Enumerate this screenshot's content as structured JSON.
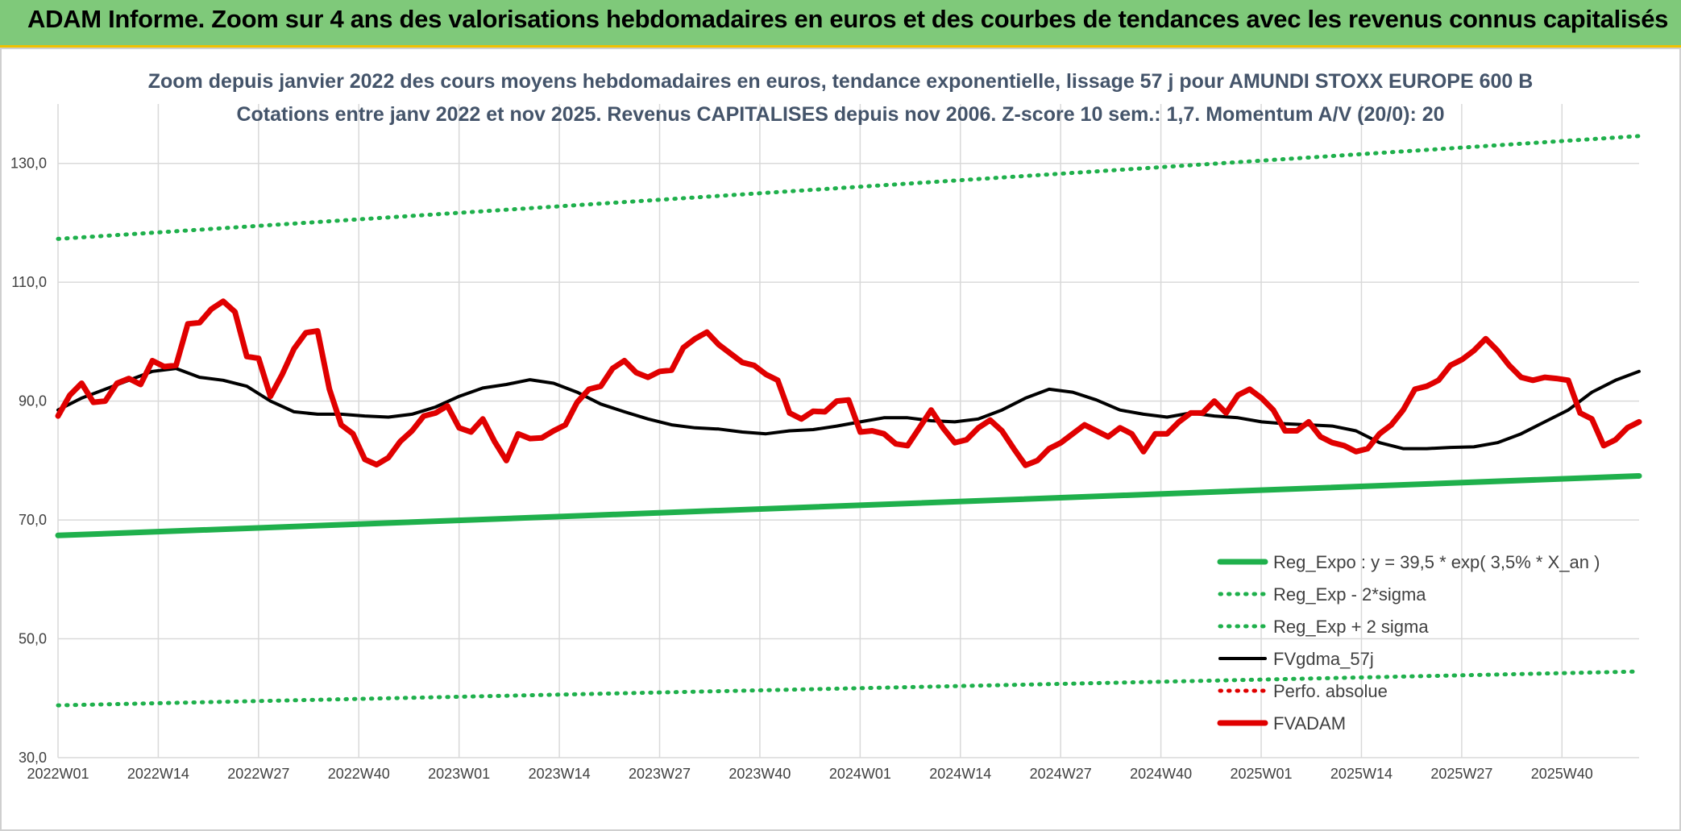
{
  "banner": {
    "title": "ADAM Informe. Zoom sur 4 ans des valorisations hebdomadaires en euros et des courbes de tendances avec les revenus connus capitalisés"
  },
  "colors": {
    "banner_bg": "#7fc97a",
    "banner_border": "#f0c000",
    "reg_expo": "#1fb04c",
    "band": "#1fb04c",
    "gdma": "#000000",
    "perfo": "#e00000",
    "fvadam": "#e00000",
    "grid": "#d9d9d9"
  },
  "chart_data": {
    "type": "line",
    "title_lines": [
      "Zoom depuis janvier 2022 des cours moyens hebdomadaires en euros, tendance exponentielle, lissage 57 j pour AMUNDI STOXX EUROPE 600 B",
      "Cotations entre janv 2022 et nov 2025. Revenus CAPITALISES depuis nov 2006. Z-score 10 sem.: 1,7. Momentum A/V (20/0): 20"
    ],
    "ylim": [
      30,
      140
    ],
    "y_ticks": [
      "30,0",
      "50,0",
      "70,0",
      "90,0",
      "110,0",
      "130,0"
    ],
    "y_tick_values": [
      30,
      50,
      70,
      90,
      110,
      130
    ],
    "x_tick_labels": [
      "2022W01",
      "2022W14",
      "2022W27",
      "2022W40",
      "2023W01",
      "2023W14",
      "2023W27",
      "2023W40",
      "2024W01",
      "2024W14",
      "2024W27",
      "2024W40",
      "2025W01",
      "2025W14",
      "2025W27",
      "2025W40"
    ],
    "weeks_count": 206,
    "grid": true,
    "legend_position": "bottom-right",
    "series": [
      {
        "name": "Reg_Expo : y = 39,5 * exp( 3,5% *  X_an )",
        "style": "solid-thick",
        "color": "#1fb04c",
        "points": [
          [
            0,
            67.4
          ],
          [
            205,
            77.4
          ]
        ]
      },
      {
        "name": "Reg_Exp - 2*sigma",
        "style": "dotted",
        "color": "#1fb04c",
        "points": [
          [
            0,
            38.8
          ],
          [
            205,
            44.5
          ]
        ]
      },
      {
        "name": "Reg_Exp + 2 sigma",
        "style": "dotted",
        "color": "#1fb04c",
        "points": [
          [
            0,
            117.3
          ],
          [
            205,
            134.6
          ]
        ]
      },
      {
        "name": "FVgdma_57j",
        "style": "solid",
        "color": "#000000",
        "points": [
          [
            0,
            88.5
          ],
          [
            4,
            90.5
          ],
          [
            8,
            92
          ],
          [
            12,
            93.5
          ],
          [
            16,
            95
          ],
          [
            20,
            95.5
          ],
          [
            24,
            94
          ],
          [
            28,
            93.5
          ],
          [
            32,
            92.5
          ],
          [
            36,
            90
          ],
          [
            40,
            88.2
          ],
          [
            44,
            87.8
          ],
          [
            48,
            87.8
          ],
          [
            52,
            87.5
          ],
          [
            56,
            87.3
          ],
          [
            60,
            87.8
          ],
          [
            64,
            89
          ],
          [
            68,
            90.8
          ],
          [
            72,
            92.2
          ],
          [
            76,
            92.8
          ],
          [
            80,
            93.6
          ],
          [
            84,
            93
          ],
          [
            88,
            91.5
          ],
          [
            92,
            89.5
          ],
          [
            96,
            88.2
          ],
          [
            100,
            87
          ],
          [
            104,
            86
          ],
          [
            108,
            85.5
          ],
          [
            112,
            85.3
          ],
          [
            116,
            84.8
          ],
          [
            120,
            84.5
          ],
          [
            124,
            85
          ],
          [
            128,
            85.2
          ],
          [
            132,
            85.8
          ],
          [
            136,
            86.5
          ],
          [
            140,
            87.2
          ],
          [
            144,
            87.2
          ],
          [
            148,
            86.7
          ],
          [
            152,
            86.5
          ],
          [
            156,
            87
          ],
          [
            160,
            88.5
          ],
          [
            164,
            90.5
          ],
          [
            168,
            92
          ],
          [
            172,
            91.5
          ],
          [
            176,
            90.2
          ],
          [
            180,
            88.5
          ],
          [
            184,
            87.8
          ],
          [
            188,
            87.3
          ],
          [
            192,
            88
          ],
          [
            196,
            87.5
          ],
          [
            200,
            87.2
          ],
          [
            204,
            86.5
          ],
          [
            208,
            86.2
          ],
          [
            212,
            86
          ],
          [
            216,
            85.8
          ],
          [
            220,
            85
          ],
          [
            224,
            83
          ],
          [
            228,
            82
          ],
          [
            232,
            82
          ],
          [
            236,
            82.2
          ],
          [
            240,
            82.3
          ],
          [
            244,
            83
          ],
          [
            248,
            84.5
          ],
          [
            252,
            86.5
          ],
          [
            256,
            88.5
          ],
          [
            260,
            91.5
          ],
          [
            264,
            93.5
          ],
          [
            268,
            95
          ]
        ]
      },
      {
        "name": "Perfo. absolue",
        "style": "dotted",
        "color": "#e00000",
        "points": []
      },
      {
        "name": "FVADAM",
        "style": "solid-thick",
        "color": "#e00000",
        "points": [
          [
            0,
            87.5
          ],
          [
            2,
            91
          ],
          [
            4,
            93
          ],
          [
            6,
            89.8
          ],
          [
            8,
            90
          ],
          [
            10,
            93
          ],
          [
            12,
            93.8
          ],
          [
            14,
            92.8
          ],
          [
            16,
            96.8
          ],
          [
            18,
            95.8
          ],
          [
            20,
            96
          ],
          [
            22,
            103
          ],
          [
            24,
            103.2
          ],
          [
            26,
            105.5
          ],
          [
            28,
            106.8
          ],
          [
            30,
            105
          ],
          [
            32,
            97.5
          ],
          [
            34,
            97.2
          ],
          [
            36,
            90.8
          ],
          [
            38,
            94.5
          ],
          [
            40,
            98.8
          ],
          [
            42,
            101.5
          ],
          [
            44,
            101.8
          ],
          [
            46,
            92
          ],
          [
            48,
            86
          ],
          [
            50,
            84.5
          ],
          [
            52,
            80.2
          ],
          [
            54,
            79.3
          ],
          [
            56,
            80.5
          ],
          [
            58,
            83.2
          ],
          [
            60,
            85
          ],
          [
            62,
            87.5
          ],
          [
            64,
            88
          ],
          [
            66,
            89.2
          ],
          [
            68,
            85.5
          ],
          [
            70,
            84.8
          ],
          [
            72,
            87
          ],
          [
            74,
            83.2
          ],
          [
            76,
            80
          ],
          [
            78,
            84.5
          ],
          [
            80,
            83.7
          ],
          [
            82,
            83.8
          ],
          [
            84,
            85
          ],
          [
            86,
            86
          ],
          [
            88,
            89.8
          ],
          [
            90,
            92
          ],
          [
            92,
            92.5
          ],
          [
            94,
            95.5
          ],
          [
            96,
            96.8
          ],
          [
            98,
            94.8
          ],
          [
            100,
            94
          ],
          [
            102,
            95
          ],
          [
            104,
            95.2
          ],
          [
            106,
            99
          ],
          [
            108,
            100.5
          ],
          [
            110,
            101.6
          ],
          [
            112,
            99.5
          ],
          [
            114,
            98
          ],
          [
            116,
            96.5
          ],
          [
            118,
            96
          ],
          [
            120,
            94.5
          ],
          [
            122,
            93.5
          ],
          [
            124,
            88
          ],
          [
            126,
            87
          ],
          [
            128,
            88.3
          ],
          [
            130,
            88.2
          ],
          [
            132,
            90
          ],
          [
            134,
            90.2
          ],
          [
            136,
            84.8
          ],
          [
            138,
            85
          ],
          [
            140,
            84.5
          ],
          [
            142,
            82.8
          ],
          [
            144,
            82.5
          ],
          [
            146,
            85.5
          ],
          [
            148,
            88.5
          ],
          [
            150,
            85.5
          ],
          [
            152,
            83
          ],
          [
            154,
            83.5
          ],
          [
            156,
            85.5
          ],
          [
            158,
            86.8
          ],
          [
            160,
            85
          ],
          [
            162,
            82
          ],
          [
            164,
            79.2
          ],
          [
            166,
            80
          ],
          [
            168,
            82
          ],
          [
            170,
            83
          ],
          [
            172,
            84.5
          ],
          [
            174,
            86
          ],
          [
            176,
            85
          ],
          [
            178,
            84
          ],
          [
            180,
            85.5
          ],
          [
            182,
            84.5
          ],
          [
            184,
            81.5
          ],
          [
            186,
            84.5
          ],
          [
            188,
            84.5
          ],
          [
            190,
            86.5
          ],
          [
            192,
            88
          ],
          [
            194,
            88
          ],
          [
            196,
            90
          ],
          [
            198,
            88
          ],
          [
            200,
            91
          ],
          [
            202,
            92
          ],
          [
            204,
            90.5
          ],
          [
            206,
            88.5
          ],
          [
            208,
            85
          ],
          [
            210,
            85
          ],
          [
            212,
            86.5
          ],
          [
            214,
            84
          ],
          [
            216,
            83
          ],
          [
            218,
            82.5
          ],
          [
            220,
            81.5
          ],
          [
            222,
            82
          ],
          [
            224,
            84.5
          ],
          [
            226,
            86
          ],
          [
            228,
            88.5
          ],
          [
            230,
            92
          ],
          [
            232,
            92.5
          ],
          [
            234,
            93.5
          ],
          [
            236,
            96
          ],
          [
            238,
            97
          ],
          [
            240,
            98.5
          ],
          [
            242,
            100.5
          ],
          [
            244,
            98.5
          ],
          [
            246,
            96
          ],
          [
            248,
            94
          ],
          [
            250,
            93.5
          ],
          [
            252,
            94
          ],
          [
            254,
            93.8
          ],
          [
            256,
            93.5
          ],
          [
            258,
            88
          ],
          [
            260,
            87
          ],
          [
            262,
            82.5
          ],
          [
            264,
            83.5
          ],
          [
            266,
            85.5
          ],
          [
            268,
            86.5
          ]
        ]
      }
    ]
  }
}
